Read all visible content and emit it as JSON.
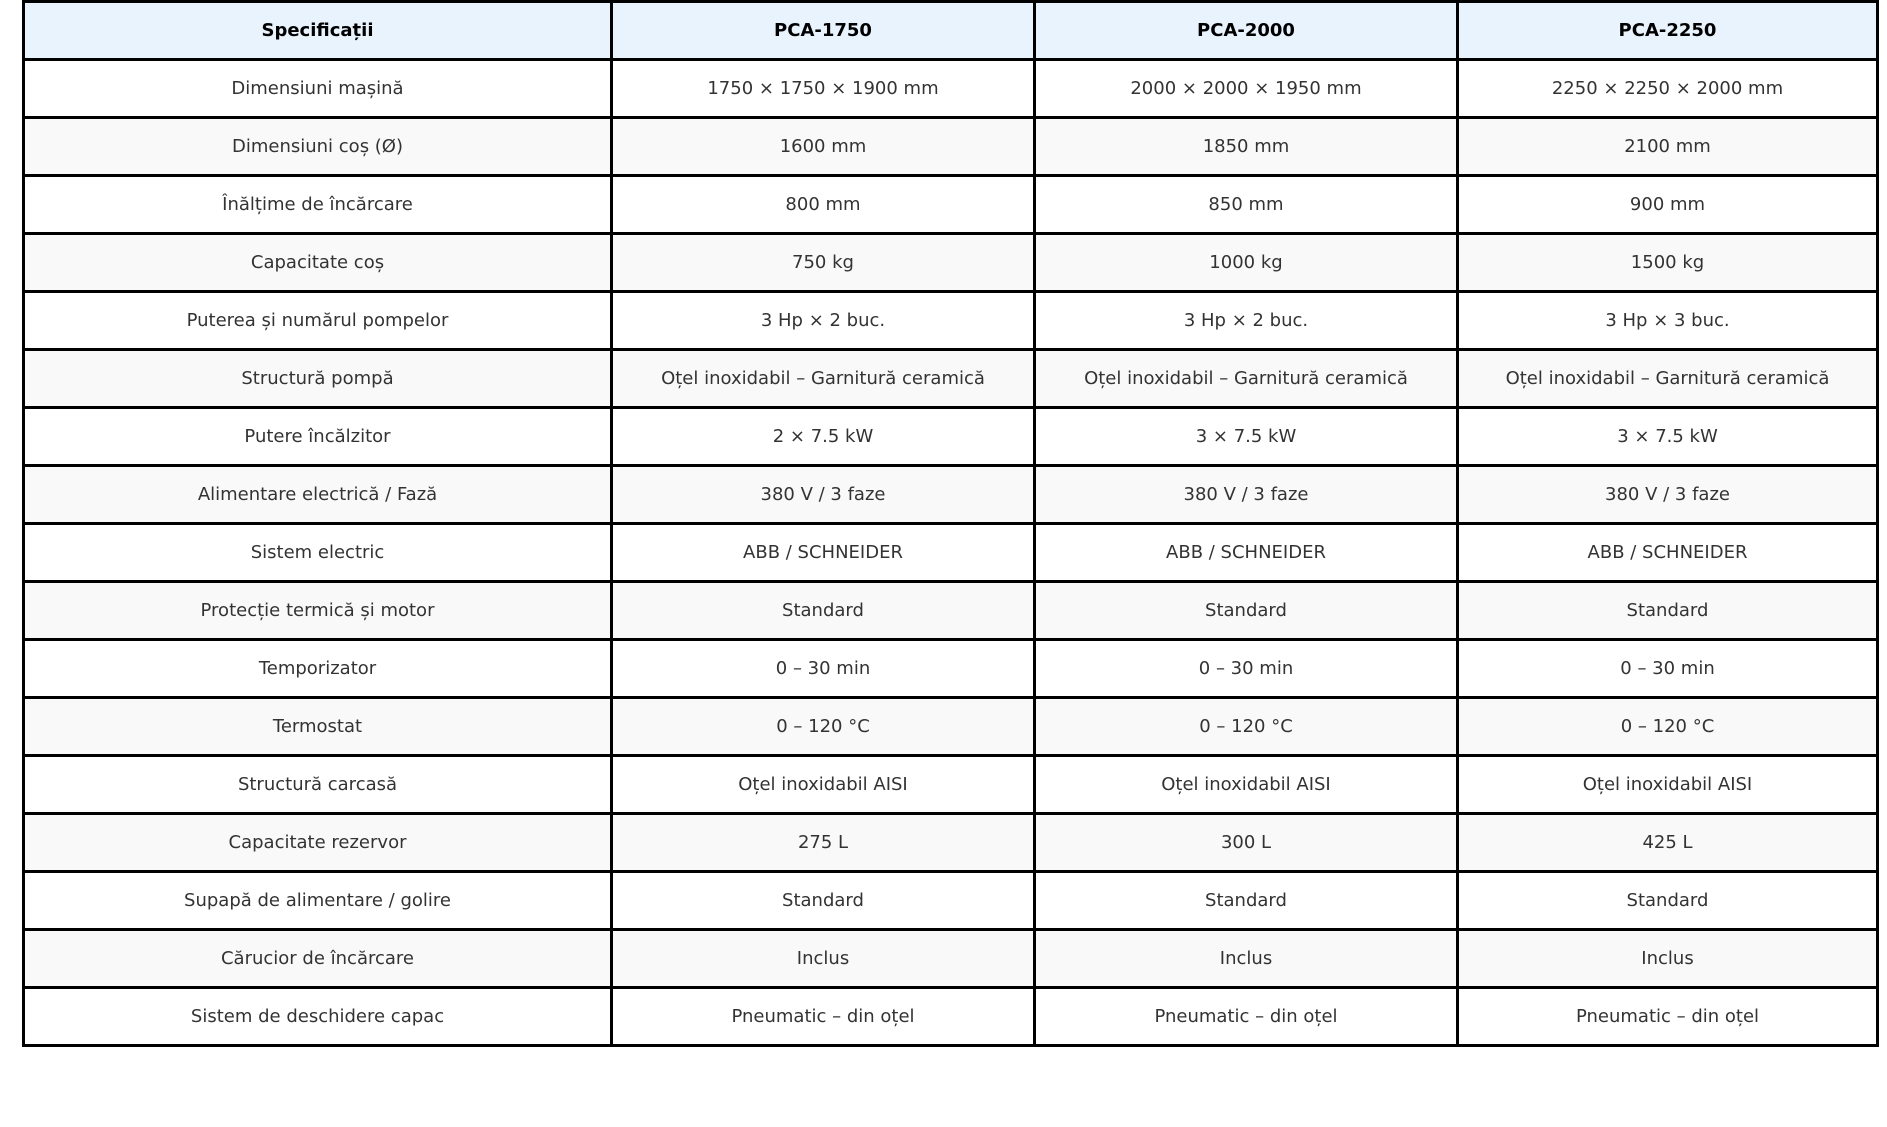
{
  "table": {
    "headers": [
      "Specificații",
      "PCA-1750",
      "PCA-2000",
      "PCA-2250"
    ],
    "rows": [
      [
        "Dimensiuni mașină",
        "1750 × 1750 × 1900 mm",
        "2000 × 2000 × 1950 mm",
        "2250 × 2250 × 2000 mm"
      ],
      [
        "Dimensiuni coș (Ø)",
        "1600 mm",
        "1850 mm",
        "2100 mm"
      ],
      [
        "Înălțime de încărcare",
        "800 mm",
        "850 mm",
        "900 mm"
      ],
      [
        "Capacitate coș",
        "750 kg",
        "1000 kg",
        "1500 kg"
      ],
      [
        "Puterea și numărul pompelor",
        "3 Hp × 2 buc.",
        "3 Hp × 2 buc.",
        "3 Hp × 3 buc."
      ],
      [
        "Structură pompă",
        "Oțel inoxidabil – Garnitură ceramică",
        "Oțel inoxidabil – Garnitură ceramică",
        "Oțel inoxidabil – Garnitură ceramică"
      ],
      [
        "Putere încălzitor",
        "2 × 7.5 kW",
        "3 × 7.5 kW",
        "3 × 7.5 kW"
      ],
      [
        "Alimentare electrică / Fază",
        "380 V / 3 faze",
        "380 V / 3 faze",
        "380 V / 3 faze"
      ],
      [
        "Sistem electric",
        "ABB / SCHNEIDER",
        "ABB / SCHNEIDER",
        "ABB / SCHNEIDER"
      ],
      [
        "Protecție termică și motor",
        "Standard",
        "Standard",
        "Standard"
      ],
      [
        "Temporizator",
        "0 – 30 min",
        "0 – 30 min",
        "0 – 30 min"
      ],
      [
        "Termostat",
        "0 – 120 °C",
        "0 – 120 °C",
        "0 – 120 °C"
      ],
      [
        "Structură carcasă",
        "Oțel inoxidabil AISI",
        "Oțel inoxidabil AISI",
        "Oțel inoxidabil AISI"
      ],
      [
        "Capacitate rezervor",
        "275 L",
        "300 L",
        "425 L"
      ],
      [
        "Supapă de alimentare / golire",
        "Standard",
        "Standard",
        "Standard"
      ],
      [
        "Cărucior de încărcare",
        "Inclus",
        "Inclus",
        "Inclus"
      ],
      [
        "Sistem de deschidere capac",
        "Pneumatic – din oțel",
        "Pneumatic – din oțel",
        "Pneumatic – din oțel"
      ]
    ]
  },
  "colors": {
    "header_bg": "#e9f3fe",
    "alt_row_bg": "#f9f9f9",
    "border": "#000000"
  }
}
